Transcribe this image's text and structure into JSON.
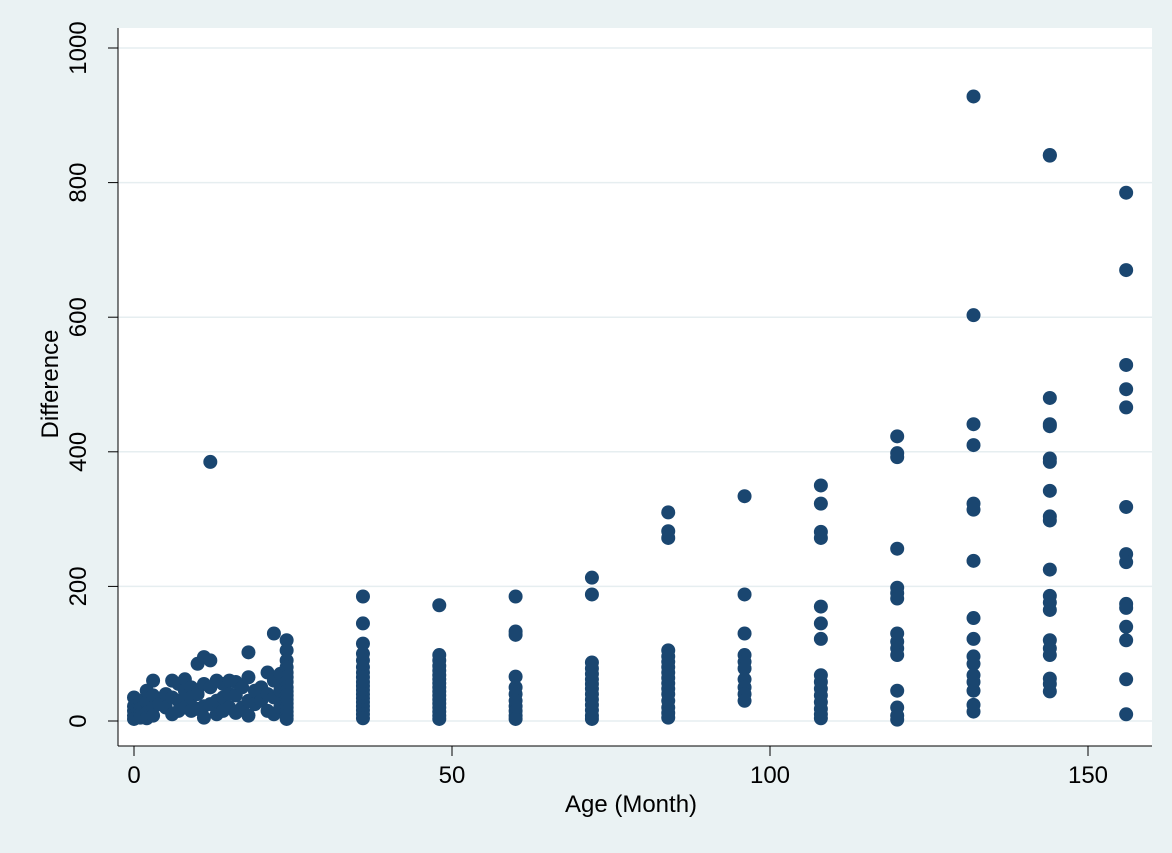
{
  "chart_data": {
    "type": "scatter",
    "title": "",
    "xlabel": "Age (Month)",
    "ylabel": "Difference",
    "xlim": [
      -3,
      160
    ],
    "ylim": [
      -20,
      1010
    ],
    "xticks": [
      0,
      50,
      100,
      150
    ],
    "yticks": [
      0,
      200,
      400,
      600,
      800,
      1000
    ],
    "grid": "horizontal",
    "marker_color": "#1a4670",
    "plot_background": "#ffffff",
    "figure_background": "#eaf2f3",
    "points": [
      [
        0,
        35
      ],
      [
        0,
        22
      ],
      [
        0,
        15
      ],
      [
        0,
        8
      ],
      [
        0,
        3
      ],
      [
        1,
        30
      ],
      [
        1,
        18
      ],
      [
        1,
        10
      ],
      [
        1,
        5
      ],
      [
        2,
        45
      ],
      [
        2,
        28
      ],
      [
        2,
        12
      ],
      [
        2,
        4
      ],
      [
        3,
        60
      ],
      [
        3,
        38
      ],
      [
        3,
        20
      ],
      [
        3,
        8
      ],
      [
        4,
        30
      ],
      [
        4,
        25
      ],
      [
        5,
        40
      ],
      [
        5,
        20
      ],
      [
        6,
        60
      ],
      [
        6,
        35
      ],
      [
        6,
        10
      ],
      [
        7,
        55
      ],
      [
        7,
        30
      ],
      [
        7,
        15
      ],
      [
        8,
        62
      ],
      [
        8,
        45
      ],
      [
        8,
        20
      ],
      [
        9,
        50
      ],
      [
        9,
        35
      ],
      [
        9,
        15
      ],
      [
        10,
        85
      ],
      [
        10,
        40
      ],
      [
        10,
        18
      ],
      [
        11,
        95
      ],
      [
        11,
        55
      ],
      [
        11,
        22
      ],
      [
        11,
        5
      ],
      [
        12,
        385
      ],
      [
        12,
        90
      ],
      [
        12,
        50
      ],
      [
        12,
        25
      ],
      [
        13,
        60
      ],
      [
        13,
        30
      ],
      [
        13,
        10
      ],
      [
        14,
        55
      ],
      [
        14,
        35
      ],
      [
        14,
        15
      ],
      [
        15,
        60
      ],
      [
        15,
        40
      ],
      [
        15,
        20
      ],
      [
        16,
        58
      ],
      [
        16,
        38
      ],
      [
        16,
        12
      ],
      [
        17,
        50
      ],
      [
        17,
        20
      ],
      [
        18,
        102
      ],
      [
        18,
        65
      ],
      [
        18,
        30
      ],
      [
        18,
        8
      ],
      [
        19,
        45
      ],
      [
        19,
        25
      ],
      [
        20,
        50
      ],
      [
        20,
        30
      ],
      [
        21,
        72
      ],
      [
        21,
        40
      ],
      [
        21,
        15
      ],
      [
        22,
        130
      ],
      [
        22,
        60
      ],
      [
        22,
        35
      ],
      [
        22,
        10
      ],
      [
        23,
        70
      ],
      [
        23,
        45
      ],
      [
        23,
        20
      ],
      [
        24,
        120
      ],
      [
        24,
        105
      ],
      [
        24,
        90
      ],
      [
        24,
        80
      ],
      [
        24,
        72
      ],
      [
        24,
        65
      ],
      [
        24,
        58
      ],
      [
        24,
        50
      ],
      [
        24,
        44
      ],
      [
        24,
        38
      ],
      [
        24,
        32
      ],
      [
        24,
        26
      ],
      [
        24,
        20
      ],
      [
        24,
        14
      ],
      [
        24,
        8
      ],
      [
        24,
        3
      ],
      [
        36,
        185
      ],
      [
        36,
        145
      ],
      [
        36,
        115
      ],
      [
        36,
        100
      ],
      [
        36,
        90
      ],
      [
        36,
        80
      ],
      [
        36,
        72
      ],
      [
        36,
        65
      ],
      [
        36,
        58
      ],
      [
        36,
        52
      ],
      [
        36,
        46
      ],
      [
        36,
        40
      ],
      [
        36,
        34
      ],
      [
        36,
        28
      ],
      [
        36,
        22
      ],
      [
        36,
        16
      ],
      [
        36,
        10
      ],
      [
        36,
        4
      ],
      [
        48,
        172
      ],
      [
        48,
        98
      ],
      [
        48,
        90
      ],
      [
        48,
        82
      ],
      [
        48,
        75
      ],
      [
        48,
        68
      ],
      [
        48,
        62
      ],
      [
        48,
        56
      ],
      [
        48,
        50
      ],
      [
        48,
        44
      ],
      [
        48,
        38
      ],
      [
        48,
        32
      ],
      [
        48,
        26
      ],
      [
        48,
        20
      ],
      [
        48,
        14
      ],
      [
        48,
        8
      ],
      [
        48,
        3
      ],
      [
        60,
        185
      ],
      [
        60,
        133
      ],
      [
        60,
        128
      ],
      [
        60,
        66
      ],
      [
        60,
        50
      ],
      [
        60,
        40
      ],
      [
        60,
        30
      ],
      [
        60,
        22
      ],
      [
        60,
        15
      ],
      [
        60,
        8
      ],
      [
        60,
        3
      ],
      [
        72,
        213
      ],
      [
        72,
        188
      ],
      [
        72,
        87
      ],
      [
        72,
        78
      ],
      [
        72,
        70
      ],
      [
        72,
        62
      ],
      [
        72,
        55
      ],
      [
        72,
        48
      ],
      [
        72,
        40
      ],
      [
        72,
        32
      ],
      [
        72,
        24
      ],
      [
        72,
        16
      ],
      [
        72,
        8
      ],
      [
        72,
        3
      ],
      [
        84,
        310
      ],
      [
        84,
        282
      ],
      [
        84,
        272
      ],
      [
        84,
        105
      ],
      [
        84,
        96
      ],
      [
        84,
        88
      ],
      [
        84,
        80
      ],
      [
        84,
        72
      ],
      [
        84,
        64
      ],
      [
        84,
        56
      ],
      [
        84,
        48
      ],
      [
        84,
        40
      ],
      [
        84,
        30
      ],
      [
        84,
        20
      ],
      [
        84,
        12
      ],
      [
        84,
        5
      ],
      [
        96,
        334
      ],
      [
        96,
        188
      ],
      [
        96,
        130
      ],
      [
        96,
        98
      ],
      [
        96,
        88
      ],
      [
        96,
        78
      ],
      [
        96,
        62
      ],
      [
        96,
        50
      ],
      [
        96,
        40
      ],
      [
        96,
        30
      ],
      [
        108,
        350
      ],
      [
        108,
        323
      ],
      [
        108,
        281
      ],
      [
        108,
        272
      ],
      [
        108,
        170
      ],
      [
        108,
        145
      ],
      [
        108,
        122
      ],
      [
        108,
        68
      ],
      [
        108,
        58
      ],
      [
        108,
        48
      ],
      [
        108,
        38
      ],
      [
        108,
        28
      ],
      [
        108,
        18
      ],
      [
        108,
        10
      ],
      [
        108,
        4
      ],
      [
        120,
        423
      ],
      [
        120,
        398
      ],
      [
        120,
        392
      ],
      [
        120,
        256
      ],
      [
        120,
        198
      ],
      [
        120,
        190
      ],
      [
        120,
        182
      ],
      [
        120,
        130
      ],
      [
        120,
        118
      ],
      [
        120,
        108
      ],
      [
        120,
        98
      ],
      [
        120,
        45
      ],
      [
        120,
        20
      ],
      [
        120,
        8
      ],
      [
        120,
        2
      ],
      [
        132,
        928
      ],
      [
        132,
        603
      ],
      [
        132,
        441
      ],
      [
        132,
        410
      ],
      [
        132,
        323
      ],
      [
        132,
        314
      ],
      [
        132,
        238
      ],
      [
        132,
        153
      ],
      [
        132,
        122
      ],
      [
        132,
        96
      ],
      [
        132,
        85
      ],
      [
        132,
        68
      ],
      [
        132,
        58
      ],
      [
        132,
        45
      ],
      [
        132,
        24
      ],
      [
        132,
        14
      ],
      [
        144,
        841
      ],
      [
        144,
        840
      ],
      [
        144,
        480
      ],
      [
        144,
        441
      ],
      [
        144,
        438
      ],
      [
        144,
        390
      ],
      [
        144,
        385
      ],
      [
        144,
        342
      ],
      [
        144,
        304
      ],
      [
        144,
        298
      ],
      [
        144,
        225
      ],
      [
        144,
        186
      ],
      [
        144,
        176
      ],
      [
        144,
        165
      ],
      [
        144,
        120
      ],
      [
        144,
        108
      ],
      [
        144,
        98
      ],
      [
        144,
        63
      ],
      [
        144,
        55
      ],
      [
        144,
        44
      ],
      [
        156,
        785
      ],
      [
        156,
        670
      ],
      [
        156,
        529
      ],
      [
        156,
        493
      ],
      [
        156,
        466
      ],
      [
        156,
        318
      ],
      [
        156,
        248
      ],
      [
        156,
        236
      ],
      [
        156,
        174
      ],
      [
        156,
        168
      ],
      [
        156,
        140
      ],
      [
        156,
        120
      ],
      [
        156,
        62
      ],
      [
        156,
        10
      ]
    ]
  }
}
